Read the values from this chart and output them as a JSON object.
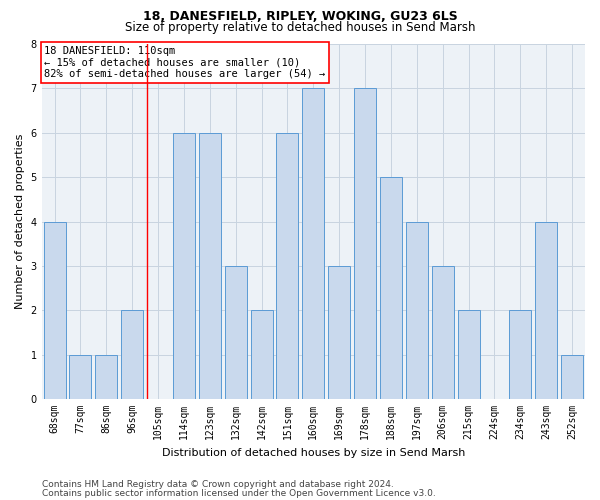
{
  "title": "18, DANESFIELD, RIPLEY, WOKING, GU23 6LS",
  "subtitle": "Size of property relative to detached houses in Send Marsh",
  "xlabel": "Distribution of detached houses by size in Send Marsh",
  "ylabel": "Number of detached properties",
  "categories": [
    "68sqm",
    "77sqm",
    "86sqm",
    "96sqm",
    "105sqm",
    "114sqm",
    "123sqm",
    "132sqm",
    "142sqm",
    "151sqm",
    "160sqm",
    "169sqm",
    "178sqm",
    "188sqm",
    "197sqm",
    "206sqm",
    "215sqm",
    "224sqm",
    "234sqm",
    "243sqm",
    "252sqm"
  ],
  "values": [
    4,
    1,
    1,
    2,
    0,
    6,
    6,
    3,
    2,
    6,
    7,
    3,
    7,
    5,
    4,
    3,
    2,
    0,
    2,
    4,
    1
  ],
  "bar_color": "#c9d9ed",
  "bar_edgecolor": "#5b9bd5",
  "red_line_index": 4,
  "annotation_text": "18 DANESFIELD: 110sqm\n← 15% of detached houses are smaller (10)\n82% of semi-detached houses are larger (54) →",
  "annotation_box_edgecolor": "red",
  "annotation_box_facecolor": "white",
  "ylim": [
    0,
    8
  ],
  "yticks": [
    0,
    1,
    2,
    3,
    4,
    5,
    6,
    7,
    8
  ],
  "grid_color": "#c8d4e0",
  "bg_color": "#edf2f7",
  "footer1": "Contains HM Land Registry data © Crown copyright and database right 2024.",
  "footer2": "Contains public sector information licensed under the Open Government Licence v3.0.",
  "title_fontsize": 9,
  "subtitle_fontsize": 8.5,
  "xlabel_fontsize": 8,
  "ylabel_fontsize": 8,
  "tick_fontsize": 7,
  "annotation_fontsize": 7.5,
  "footer_fontsize": 6.5
}
